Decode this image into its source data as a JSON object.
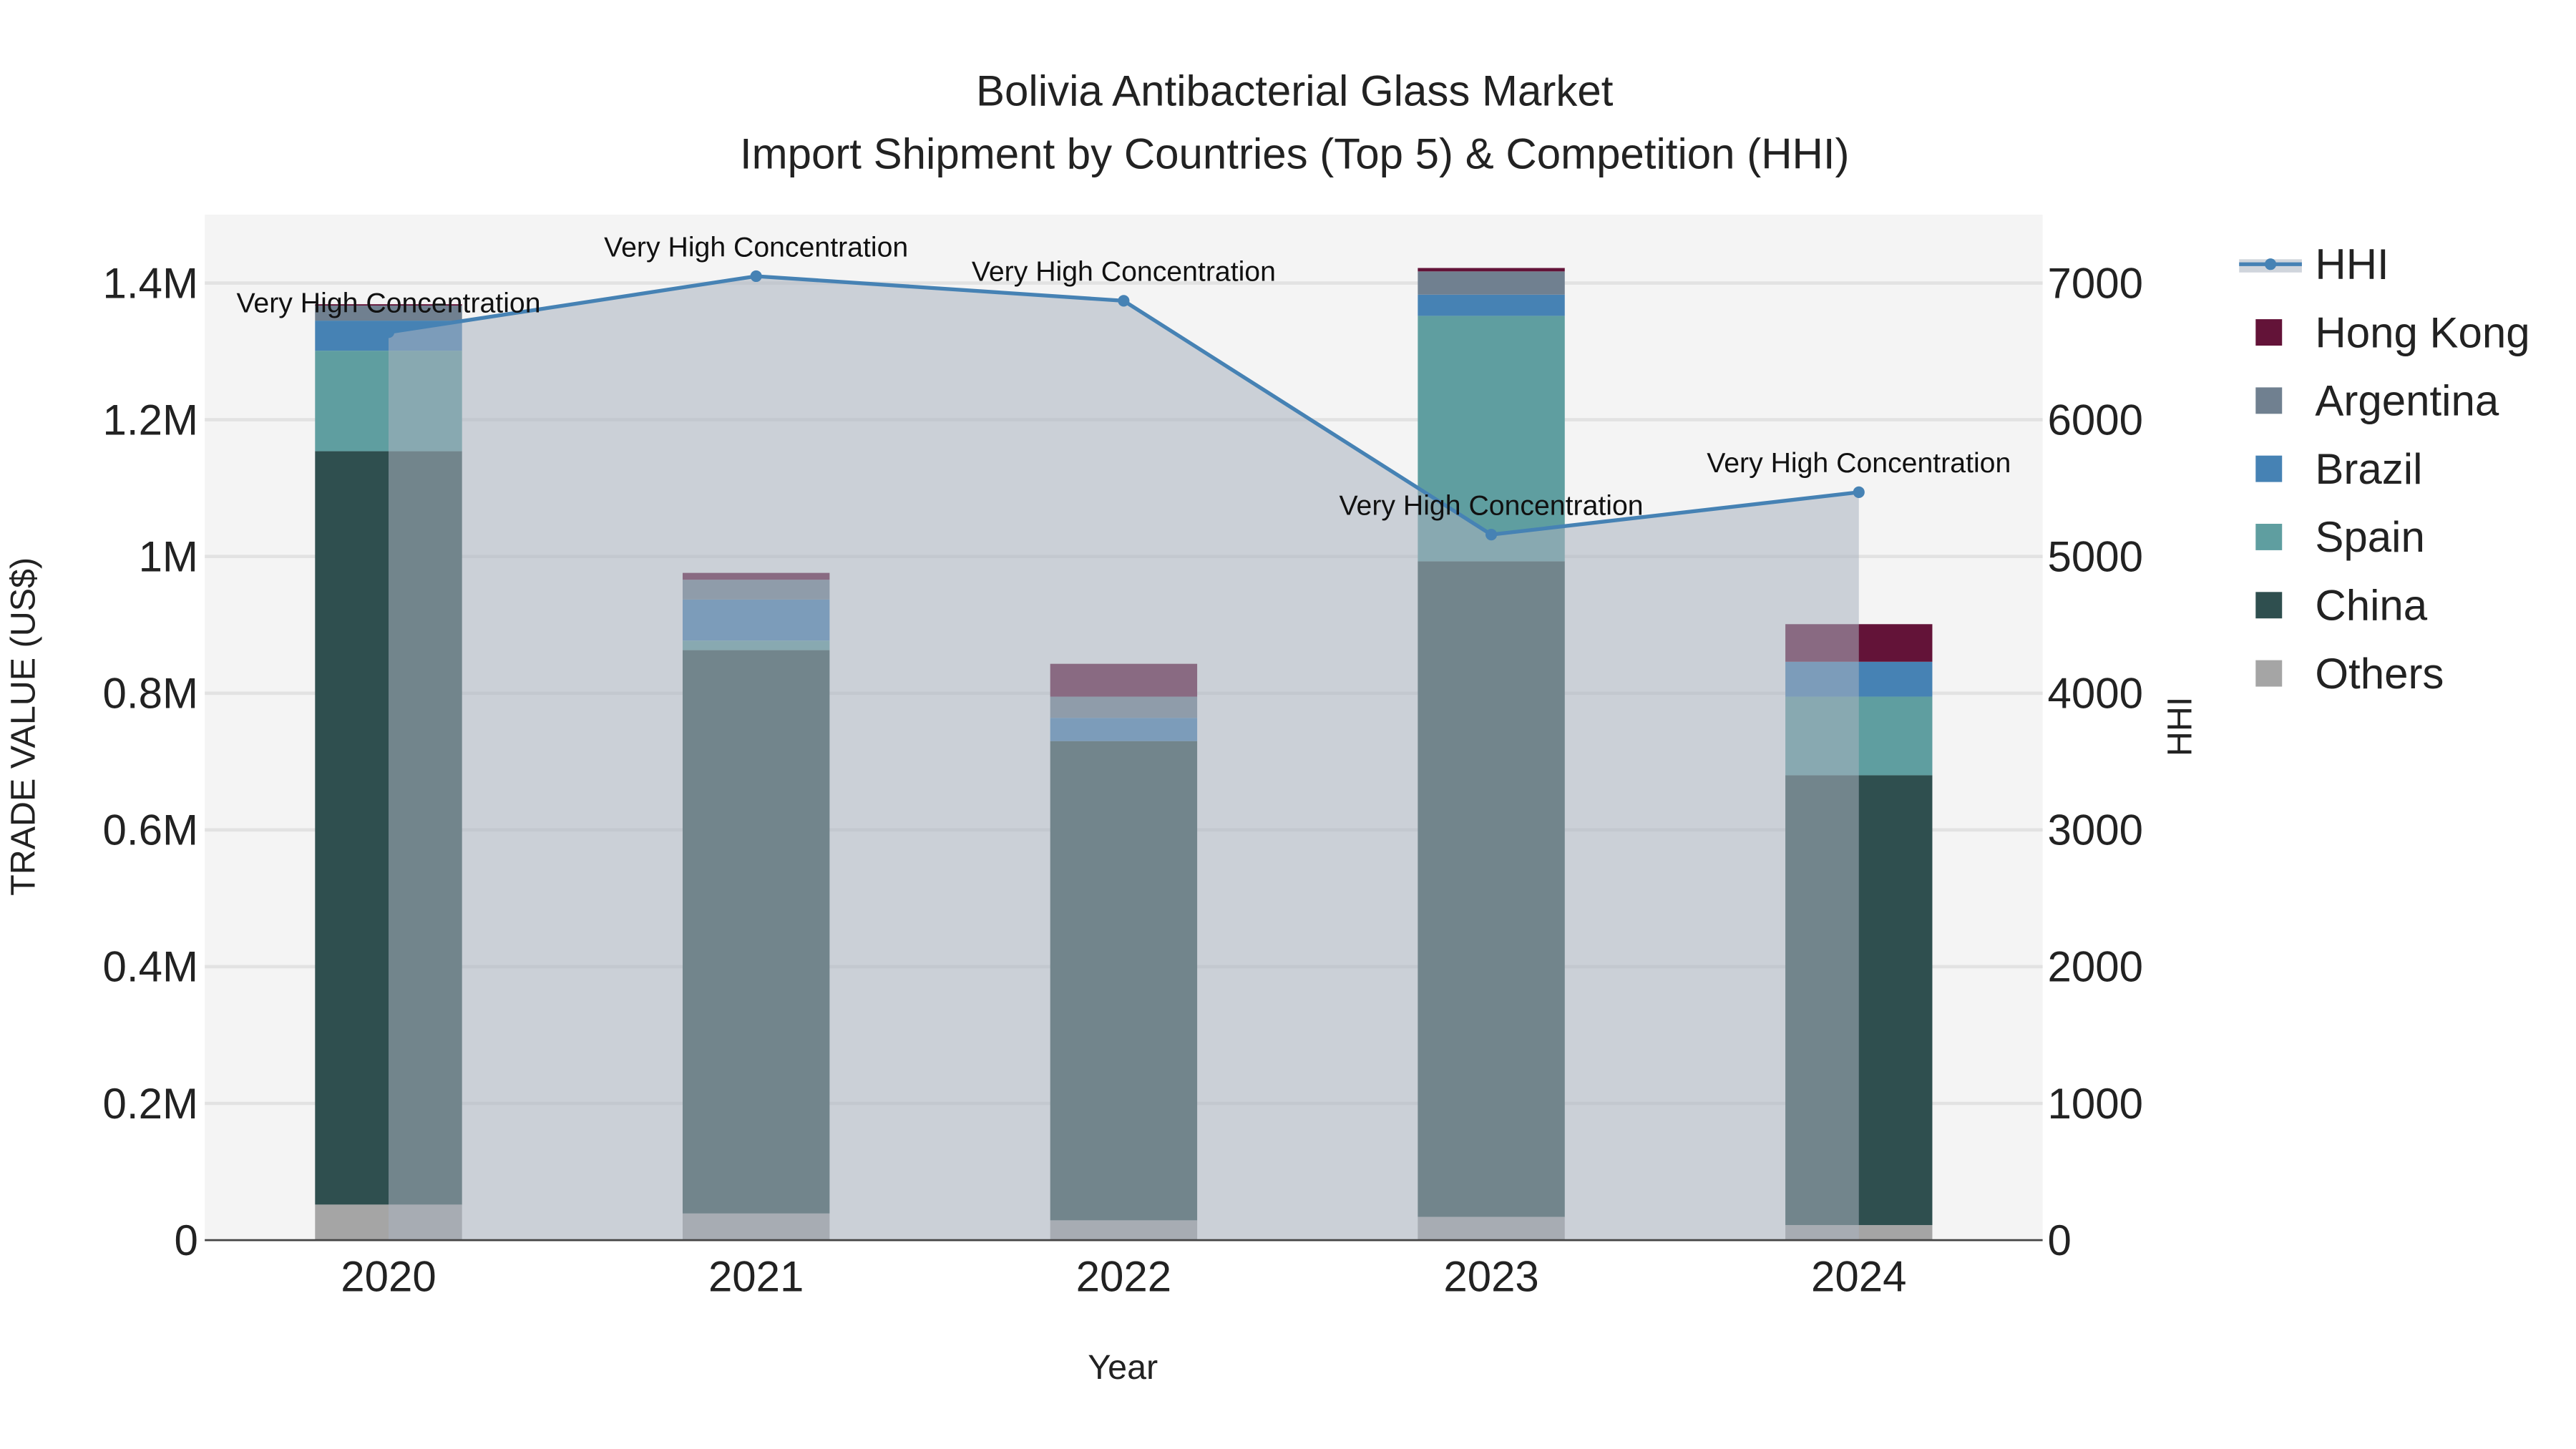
{
  "chart_data": {
    "type": "bar",
    "title": "Bolivia Antibacterial Glass Market",
    "subtitle": "Import Shipment by Countries (Top 5) & Competition (HHI)",
    "xlabel": "Year",
    "ylabel": "TRADE VALUE (US$)",
    "y2label": "HHI",
    "categories": [
      "2020",
      "2021",
      "2022",
      "2023",
      "2024"
    ],
    "ylim": [
      0,
      1500000
    ],
    "y2lim": [
      0,
      7500
    ],
    "yticks": [
      0,
      200000,
      400000,
      600000,
      800000,
      1000000,
      1200000,
      1400000
    ],
    "ytick_labels": [
      "0",
      "0.2M",
      "0.4M",
      "0.6M",
      "0.8M",
      "1M",
      "1.2M",
      "1.4M"
    ],
    "y2ticks": [
      0,
      1000,
      2000,
      3000,
      4000,
      5000,
      6000,
      7000
    ],
    "y2tick_labels": [
      "0",
      "1000",
      "2000",
      "3000",
      "4000",
      "5000",
      "6000",
      "7000"
    ],
    "series": [
      {
        "name": "Others",
        "color": "#a5a5a5",
        "values": [
          52000,
          39000,
          29000,
          34000,
          22000
        ]
      },
      {
        "name": "China",
        "color": "#2f4f4f",
        "values": [
          1102000,
          824000,
          701000,
          959000,
          658000
        ]
      },
      {
        "name": "Spain",
        "color": "#5f9ea0",
        "values": [
          147000,
          14000,
          0,
          359000,
          115000
        ]
      },
      {
        "name": "Brazil",
        "color": "#4682b4",
        "values": [
          44000,
          60000,
          34000,
          31000,
          51000
        ]
      },
      {
        "name": "Argentina",
        "color": "#708090",
        "values": [
          22000,
          29000,
          31000,
          34000,
          0
        ]
      },
      {
        "name": "Hong Kong",
        "color": "#631338",
        "values": [
          2000,
          10000,
          48000,
          5000,
          55000
        ]
      }
    ],
    "legend_order": [
      "HHI",
      "Hong Kong",
      "Argentina",
      "Brazil",
      "Spain",
      "China",
      "Others"
    ],
    "hhi": {
      "name": "HHI",
      "color": "#4682b4",
      "values": [
        6640,
        7050,
        6870,
        5160,
        5470
      ],
      "annotations": [
        "Very High Concentration",
        "Very High Concentration",
        "Very High Concentration",
        "Very High Concentration",
        "Very High Concentration"
      ]
    },
    "legend_position": "right",
    "grid": true
  }
}
